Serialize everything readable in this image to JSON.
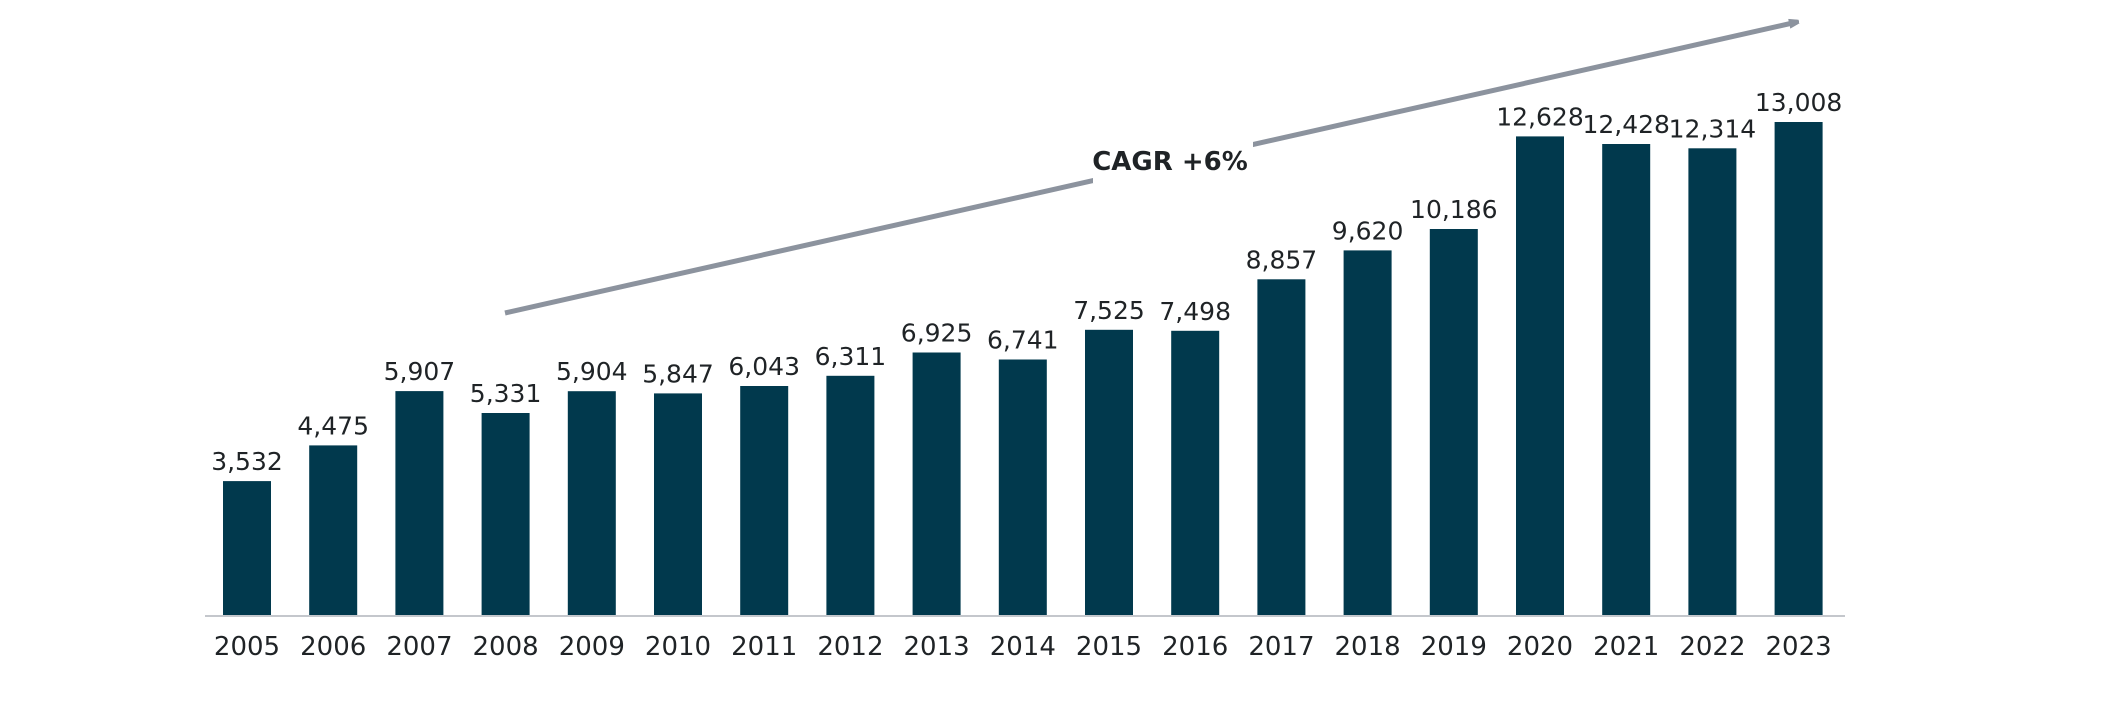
{
  "chart_data": {
    "type": "bar",
    "categories": [
      "2005",
      "2006",
      "2007",
      "2008",
      "2009",
      "2010",
      "2011",
      "2012",
      "2013",
      "2014",
      "2015",
      "2016",
      "2017",
      "2018",
      "2019",
      "2020",
      "2021",
      "2022",
      "2023"
    ],
    "values": [
      3532,
      4475,
      5907,
      5331,
      5904,
      5847,
      6043,
      6311,
      6925,
      6741,
      7525,
      7498,
      8857,
      9620,
      10186,
      12628,
      12428,
      12314,
      13008
    ],
    "value_labels": [
      "3,532",
      "4,475",
      "5,907",
      "5,331",
      "5,904",
      "5,847",
      "6,043",
      "6,311",
      "6,925",
      "6,741",
      "7,525",
      "7,498",
      "8,857",
      "9,620",
      "10,186",
      "12,628",
      "12,428",
      "12,314",
      "13,008"
    ],
    "annotation": "CAGR +6%",
    "title": "",
    "xlabel": "",
    "ylabel": "",
    "ylim": [
      0,
      13008
    ],
    "grid": false,
    "legend": "none",
    "bar_color": "#01394d",
    "arrow_color": "#8c939e"
  }
}
